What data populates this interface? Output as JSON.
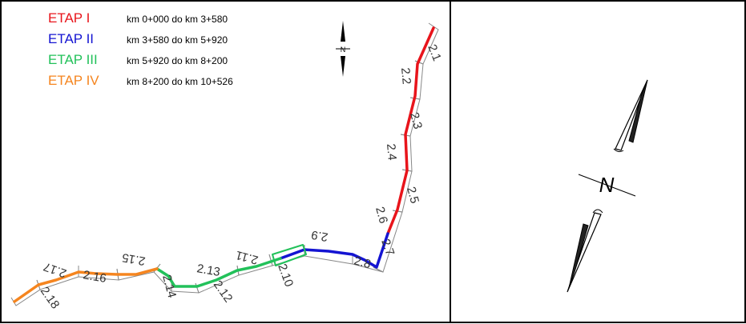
{
  "legend": [
    {
      "etap_word": "ETAP",
      "numeral": "I",
      "range": "km 0+000 do km 3+580",
      "color": "#e8141b"
    },
    {
      "etap_word": "ETAP",
      "numeral": "II",
      "range": "km 3+580 do km 5+920",
      "color": "#1414d2"
    },
    {
      "etap_word": "ETAP",
      "numeral": "III",
      "range": "km 5+920 do km 8+200",
      "color": "#22c15a"
    },
    {
      "etap_word": "ETAP",
      "numeral": "IV",
      "range": "km 8+200 do km 10+526",
      "color": "#f5851f"
    }
  ],
  "segments": [
    "2.1",
    "2.2",
    "2.3",
    "2.4",
    "2.5",
    "2.6",
    "2.7",
    "2.8",
    "2.9",
    "2.10",
    "2.11",
    "2.12",
    "2.13",
    "2.14",
    "2.15",
    "2.16",
    "2.17",
    "2.18"
  ],
  "compass": {
    "small_letter": "N",
    "large_letter": "N"
  }
}
